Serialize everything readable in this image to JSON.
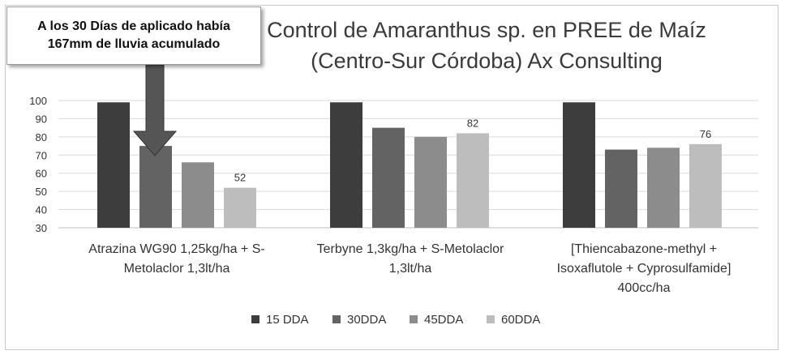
{
  "chart_data": {
    "type": "bar",
    "title": "Control de Amaranthus sp. en PREE de Maíz",
    "subtitle": "(Centro-Sur Córdoba) Ax Consulting",
    "categories": [
      [
        "Atrazina WG90 1,25kg/ha + S-",
        "Metolaclor 1,3lt/ha"
      ],
      [
        "Terbyne 1,3kg/ha + S-Metolaclor",
        "1,3lt/ha"
      ],
      [
        "[Thiencabazone-methyl +",
        "Isoxaflutole + Cyprosulfamide]",
        "400cc/ha"
      ]
    ],
    "series": [
      {
        "name": "15 DDA",
        "values": [
          99,
          99,
          99
        ],
        "color": "#3d3d3d"
      },
      {
        "name": "30DDA",
        "values": [
          75,
          85,
          73
        ],
        "color": "#636363"
      },
      {
        "name": "45DDA",
        "values": [
          66,
          80,
          74
        ],
        "color": "#8c8c8c"
      },
      {
        "name": "60DDA",
        "values": [
          52,
          82,
          76
        ],
        "color": "#bdbdbd"
      }
    ],
    "data_labels": [
      {
        "series": 3,
        "category": 0,
        "text": "52"
      },
      {
        "series": 3,
        "category": 1,
        "text": "82"
      },
      {
        "series": 3,
        "category": 2,
        "text": "76"
      }
    ],
    "yticks": [
      100,
      90,
      80,
      70,
      60,
      50,
      40,
      30
    ],
    "ylim": [
      30,
      100
    ],
    "grid": true,
    "legend_position": "bottom",
    "annotation": {
      "text_lines": [
        "A los 30 Días de aplicado había",
        "167mm de lluvia acumulado"
      ],
      "arrow_target": {
        "series": 1,
        "category": 0
      },
      "arrow_color": "#555555"
    }
  }
}
